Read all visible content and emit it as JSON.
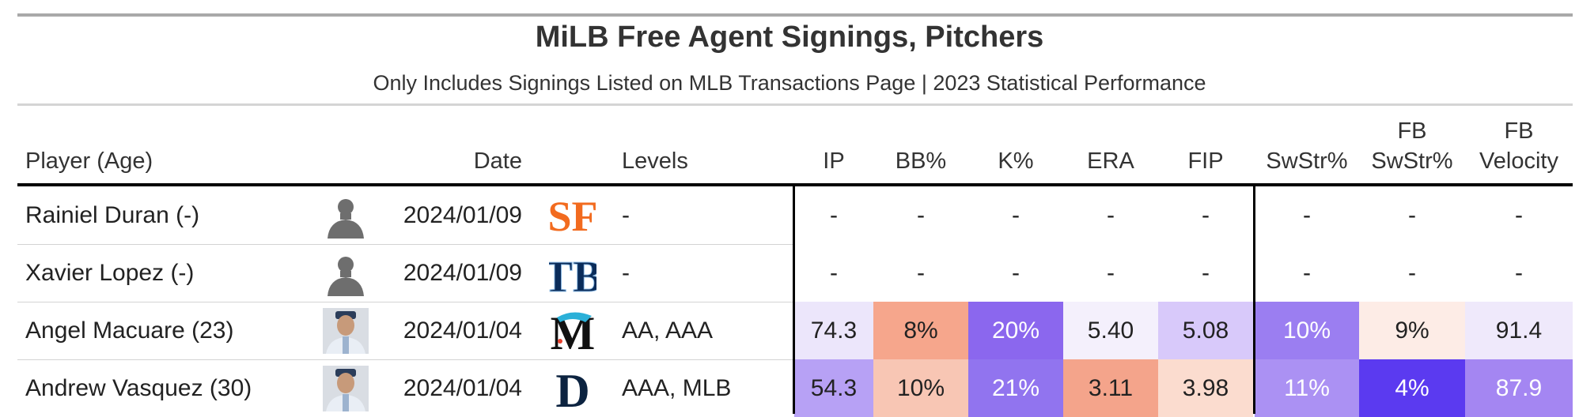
{
  "title": "MiLB Free Agent Signings, Pitchers",
  "subtitle": "Only Includes Signings Listed on MLB Transactions Page | 2023 Statistical Performance",
  "columns": {
    "player": "Player (Age)",
    "date": "Date",
    "levels": "Levels",
    "ip": "IP",
    "bb": "BB%",
    "k": "K%",
    "era": "ERA",
    "fip": "FIP",
    "swstr": "SwStr%",
    "fbswstr_top": "FB",
    "fbswstr_bot": "SwStr%",
    "fbvelo_top": "FB",
    "fbvelo_bot": "Velocity"
  },
  "rows": [
    {
      "player": "Rainiel Duran (-)",
      "headshot": "silhouette",
      "date": "2024/01/09",
      "team_logo": "giants-sf-logo",
      "levels": "-",
      "ip": "-",
      "bb": "-",
      "k": "-",
      "era": "-",
      "fip": "-",
      "swstr": "-",
      "fbswstr": "-",
      "fbvelo": "-",
      "colors": {
        "ip": "#ffffff",
        "bb": "#ffffff",
        "k": "#ffffff",
        "era": "#ffffff",
        "fip": "#ffffff",
        "swstr": "#ffffff",
        "fbswstr": "#ffffff",
        "fbvelo": "#ffffff"
      },
      "text_colors": {
        "ip": "#222222",
        "bb": "#222222",
        "k": "#222222",
        "era": "#222222",
        "fip": "#222222",
        "swstr": "#222222",
        "fbswstr": "#222222",
        "fbvelo": "#222222"
      }
    },
    {
      "player": "Xavier Lopez (-)",
      "headshot": "silhouette",
      "date": "2024/01/09",
      "team_logo": "rays-tb-logo",
      "levels": "-",
      "ip": "-",
      "bb": "-",
      "k": "-",
      "era": "-",
      "fip": "-",
      "swstr": "-",
      "fbswstr": "-",
      "fbvelo": "-",
      "colors": {
        "ip": "#ffffff",
        "bb": "#ffffff",
        "k": "#ffffff",
        "era": "#ffffff",
        "fip": "#ffffff",
        "swstr": "#ffffff",
        "fbswstr": "#ffffff",
        "fbvelo": "#ffffff"
      },
      "text_colors": {
        "ip": "#222222",
        "bb": "#222222",
        "k": "#222222",
        "era": "#222222",
        "fip": "#222222",
        "swstr": "#222222",
        "fbswstr": "#222222",
        "fbvelo": "#222222"
      }
    },
    {
      "player": "Angel Macuare (23)",
      "headshot": "photo",
      "date": "2024/01/04",
      "team_logo": "marlins-m-logo",
      "levels": "AA, AAA",
      "ip": "74.3",
      "bb": "8%",
      "k": "20%",
      "era": "5.40",
      "fip": "5.08",
      "swstr": "10%",
      "fbswstr": "9%",
      "fbvelo": "91.4",
      "colors": {
        "ip": "#ece6fb",
        "bb": "#f6a68c",
        "k": "#8b67ee",
        "era": "#f4f0fc",
        "fip": "#d8c9fa",
        "swstr": "#9b7ef1",
        "fbswstr": "#fdece6",
        "fbvelo": "#efe9fb"
      },
      "text_colors": {
        "ip": "#222222",
        "bb": "#222222",
        "k": "#ffffff",
        "era": "#222222",
        "fip": "#222222",
        "swstr": "#ffffff",
        "fbswstr": "#222222",
        "fbvelo": "#222222"
      }
    },
    {
      "player": "Andrew Vasquez (30)",
      "headshot": "photo",
      "date": "2024/01/04",
      "team_logo": "tigers-d-logo",
      "levels": "AAA, MLB",
      "ip": "54.3",
      "bb": "10%",
      "k": "21%",
      "era": "3.11",
      "fip": "3.98",
      "swstr": "11%",
      "fbswstr": "4%",
      "fbvelo": "87.9",
      "colors": {
        "ip": "#b7a1f5",
        "bb": "#f8c6b4",
        "k": "#9174ef",
        "era": "#f4a48b",
        "fip": "#fbdccf",
        "swstr": "#ab91f3",
        "fbswstr": "#5b3af0",
        "fbvelo": "#a486f2"
      },
      "text_colors": {
        "ip": "#222222",
        "bb": "#222222",
        "k": "#ffffff",
        "era": "#222222",
        "fip": "#222222",
        "swstr": "#ffffff",
        "fbswstr": "#ffffff",
        "fbvelo": "#ffffff"
      }
    }
  ]
}
